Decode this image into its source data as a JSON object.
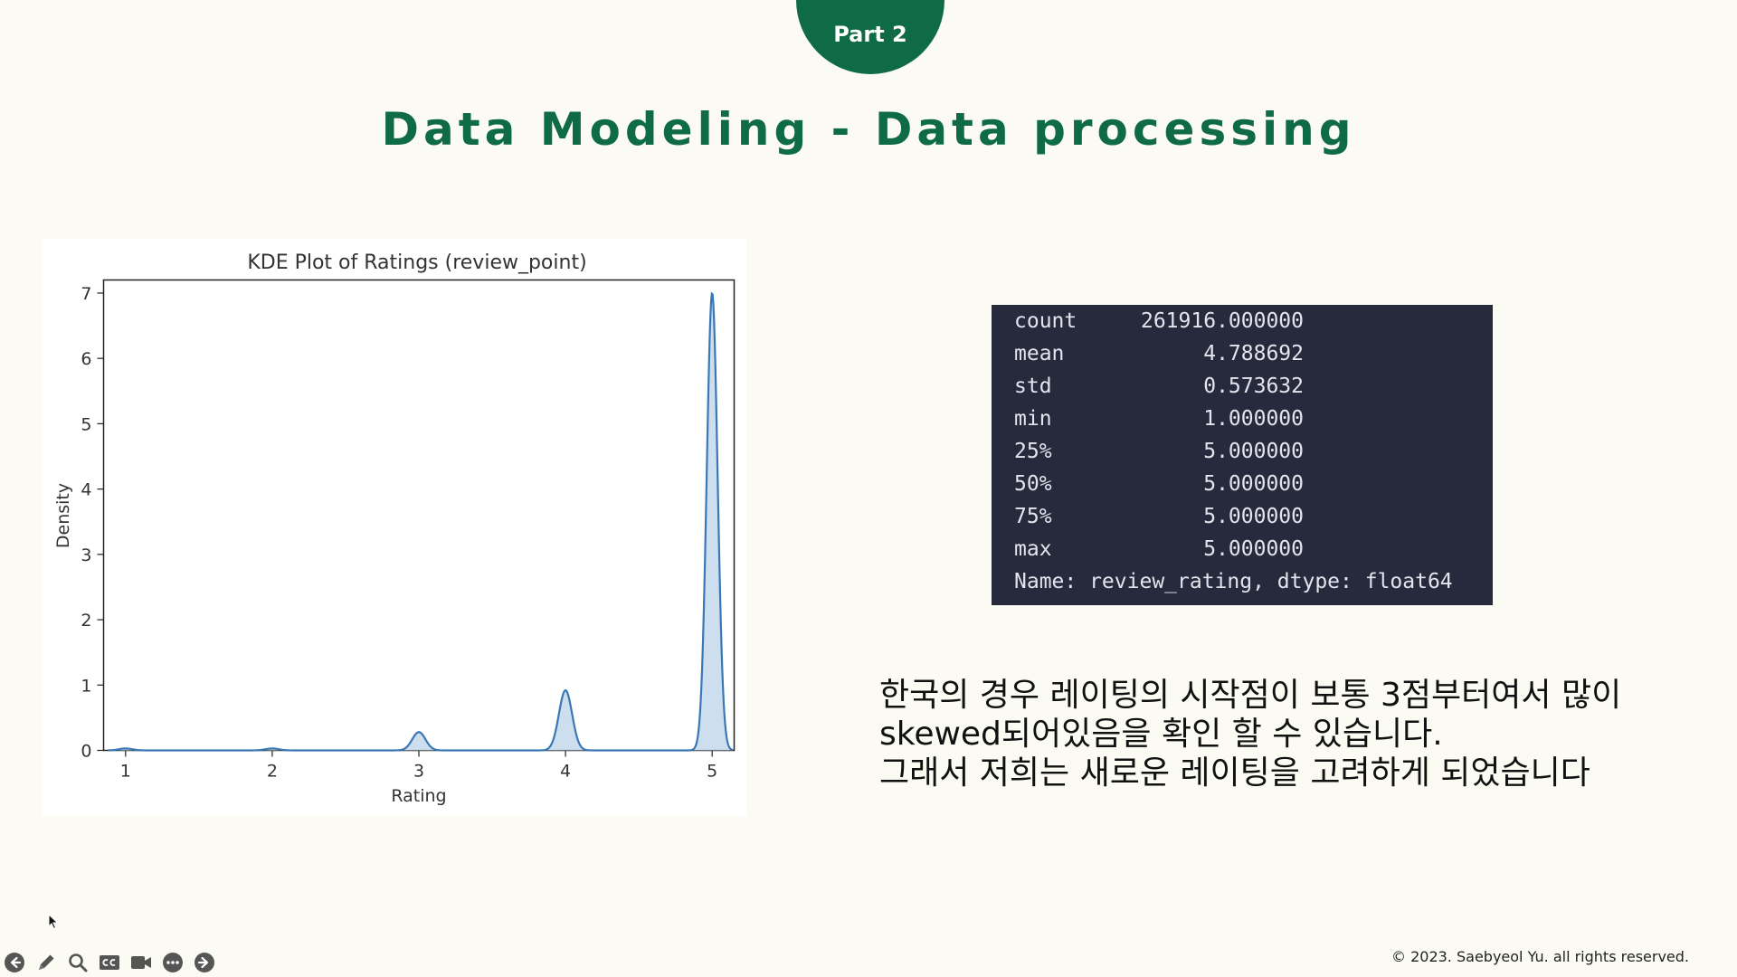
{
  "slide": {
    "part_label": "Part 2",
    "title": "Data Modeling - Data processing",
    "copyright": "© 2023. Saebyeol Yu. all rights reserved."
  },
  "colors": {
    "brand_green": "#0e6b46",
    "background": "#fbfbf4",
    "panel_bg": "#272a3c",
    "kde_line": "#3a78b5",
    "kde_fill": "#c4d9ec"
  },
  "chart_data": {
    "type": "area",
    "title": "KDE Plot of Ratings (review_point)",
    "xlabel": "Rating",
    "ylabel": "Density",
    "xlim": [
      0.85,
      5.15
    ],
    "ylim": [
      0,
      7.2
    ],
    "xticks": [
      1,
      2,
      3,
      4,
      5
    ],
    "yticks": [
      0,
      1,
      2,
      3,
      4,
      5,
      6,
      7
    ],
    "grid": false,
    "series": [
      {
        "peaks": [
          {
            "x": 1,
            "density": 0.03
          },
          {
            "x": 2,
            "density": 0.03
          },
          {
            "x": 3,
            "density": 0.28
          },
          {
            "x": 4,
            "density": 0.92
          },
          {
            "x": 5,
            "density": 7.0
          }
        ],
        "x_range": [
          0.88,
          5.14
        ]
      }
    ]
  },
  "stats": {
    "rows": [
      {
        "key": "count",
        "value": "261916.000000"
      },
      {
        "key": "mean",
        "value": "4.788692"
      },
      {
        "key": "std",
        "value": "0.573632"
      },
      {
        "key": "min",
        "value": "1.000000"
      },
      {
        "key": "25%",
        "value": "5.000000"
      },
      {
        "key": "50%",
        "value": "5.000000"
      },
      {
        "key": "75%",
        "value": "5.000000"
      },
      {
        "key": "max",
        "value": "5.000000"
      }
    ],
    "name_line": "Name: review_rating, dtype: float64"
  },
  "body_text": {
    "line1": "한국의 경우 레이팅의 시작점이 보통 3점부터여서 많이",
    "line2": "skewed되어있음을 확인 할 수 있습니다.",
    "line3": "그래서 저희는 새로운 레이팅을 고려하게 되었습니다"
  },
  "toolbar": {
    "buttons": [
      {
        "name": "previous-slide-button",
        "icon": "arrow-left-icon"
      },
      {
        "name": "pen-tool-button",
        "icon": "pen-icon"
      },
      {
        "name": "zoom-button",
        "icon": "magnifier-icon"
      },
      {
        "name": "subtitles-button",
        "icon": "cc-icon"
      },
      {
        "name": "camera-button",
        "icon": "video-camera-icon"
      },
      {
        "name": "more-options-button",
        "icon": "ellipsis-icon"
      },
      {
        "name": "next-slide-button",
        "icon": "arrow-right-icon"
      }
    ]
  }
}
